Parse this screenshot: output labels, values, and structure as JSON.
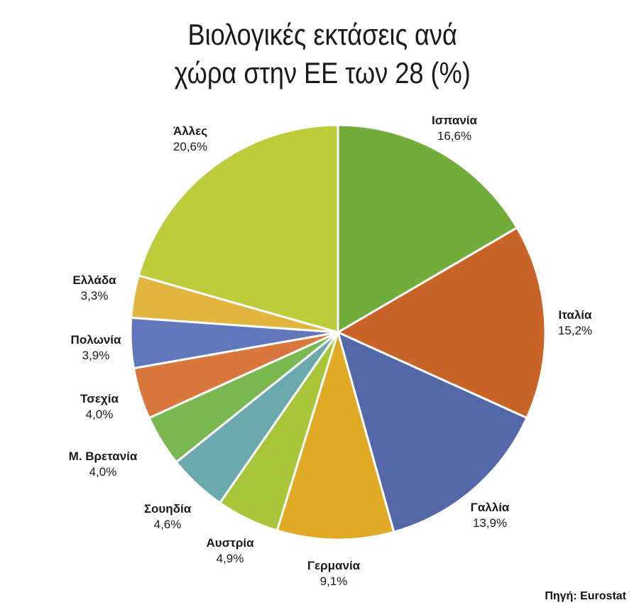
{
  "chart_data": {
    "type": "pie",
    "title_lines": [
      "Βιολογικές εκτάσεις ανά",
      "χώρα στην ΕΕ των 28 (%)"
    ],
    "slices": [
      {
        "label": "Ισπανία",
        "value": 16.6,
        "value_label": "16,6%",
        "color": "#72ad3c"
      },
      {
        "label": "Ιταλία",
        "value": 15.2,
        "value_label": "15,2%",
        "color": "#c86427"
      },
      {
        "label": "Γαλλία",
        "value": 13.9,
        "value_label": "13,9%",
        "color": "#5468a8"
      },
      {
        "label": "Γερμανία",
        "value": 9.1,
        "value_label": "9,1%",
        "color": "#e0aa25"
      },
      {
        "label": "Αυστρία",
        "value": 4.9,
        "value_label": "4,9%",
        "color": "#a9c53a"
      },
      {
        "label": "Σουηδία",
        "value": 4.6,
        "value_label": "4,6%",
        "color": "#6ba9ad"
      },
      {
        "label": "Μ. Βρετανία",
        "value": 4.0,
        "value_label": "4,0%",
        "color": "#7cb851"
      },
      {
        "label": "Τσεχία",
        "value": 4.0,
        "value_label": "4,0%",
        "color": "#d9773d"
      },
      {
        "label": "Πολωνία",
        "value": 3.9,
        "value_label": "3,9%",
        "color": "#6177bb"
      },
      {
        "label": "Ελλάδα",
        "value": 3.3,
        "value_label": "3,3%",
        "color": "#e2b53e"
      },
      {
        "label": "Άλλες",
        "value": 20.6,
        "value_label": "20,6%",
        "color": "#bdcc3a"
      }
    ],
    "start": "12 o'clock",
    "direction": "clockwise"
  },
  "source": "Πηγή: Eurostat"
}
